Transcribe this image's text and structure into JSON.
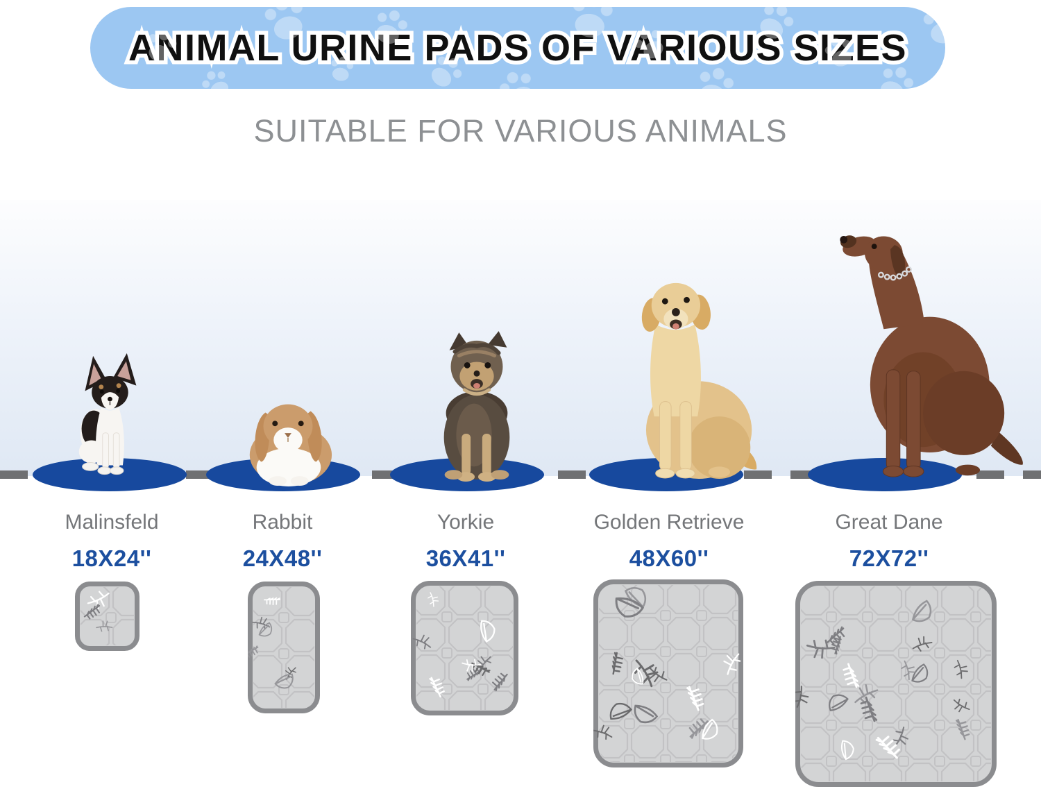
{
  "banner": {
    "title": "ANIMAL URINE PADS OF VARIOUS SIZES"
  },
  "subtitle": "SUITABLE FOR VARIOUS ANIMALS",
  "animals": [
    {
      "name": "Malinsfeld",
      "size": "18X24''"
    },
    {
      "name": "Rabbit",
      "size": "24X48''"
    },
    {
      "name": "Yorkie",
      "size": "36X41''"
    },
    {
      "name": "Golden Retrieve",
      "size": "48X60''"
    },
    {
      "name": "Great Dane",
      "size": "72X72''"
    }
  ],
  "colors": {
    "banner_blue": "#9cc7f2",
    "size_text_blue": "#1c4f9f",
    "oval_blue": "#17499e",
    "label_gray": "#747679",
    "subtitle_gray": "#8d9093",
    "dash_gray": "#6f7072",
    "pad_fill": "#d3d4d5",
    "pad_border": "#8b8c8f"
  }
}
